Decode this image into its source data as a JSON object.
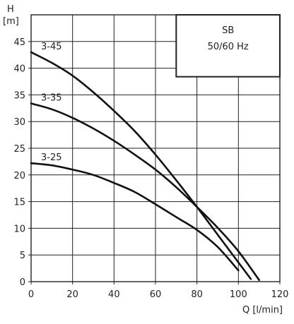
{
  "chart_data": {
    "type": "line",
    "ylabel": "H",
    "ylabel_unit": "[m]",
    "xlabel": "Q [l/min]",
    "xlim": [
      0,
      120
    ],
    "ylim": [
      0,
      50
    ],
    "x_ticks": [
      "0",
      "20",
      "40",
      "60",
      "80",
      "100",
      "120"
    ],
    "y_ticks": [
      "0",
      "5",
      "10",
      "15",
      "20",
      "25",
      "30",
      "35",
      "40",
      "45"
    ],
    "grid": true,
    "box": {
      "title": "SB",
      "subtitle": "50/60 Hz"
    },
    "series": [
      {
        "name": "3-45",
        "x": [
          0,
          10,
          20,
          30,
          40,
          50,
          60,
          70,
          80,
          90,
          100,
          106
        ],
        "y": [
          43,
          41,
          38.6,
          35.5,
          32,
          28.2,
          23.8,
          19,
          14,
          8.8,
          3.6,
          0.5
        ]
      },
      {
        "name": "3-35",
        "x": [
          0,
          10,
          20,
          30,
          40,
          50,
          60,
          70,
          80,
          90,
          100,
          110
        ],
        "y": [
          33.4,
          32.3,
          30.7,
          28.7,
          26.4,
          23.8,
          21,
          17.7,
          14,
          10.1,
          5.7,
          0.3
        ]
      },
      {
        "name": "3-25",
        "x": [
          0,
          10,
          20,
          30,
          40,
          50,
          60,
          70,
          80,
          90,
          100
        ],
        "y": [
          22.2,
          21.8,
          21,
          20,
          18.5,
          16.8,
          14.5,
          12.1,
          9.7,
          6.5,
          2.1
        ]
      }
    ]
  }
}
